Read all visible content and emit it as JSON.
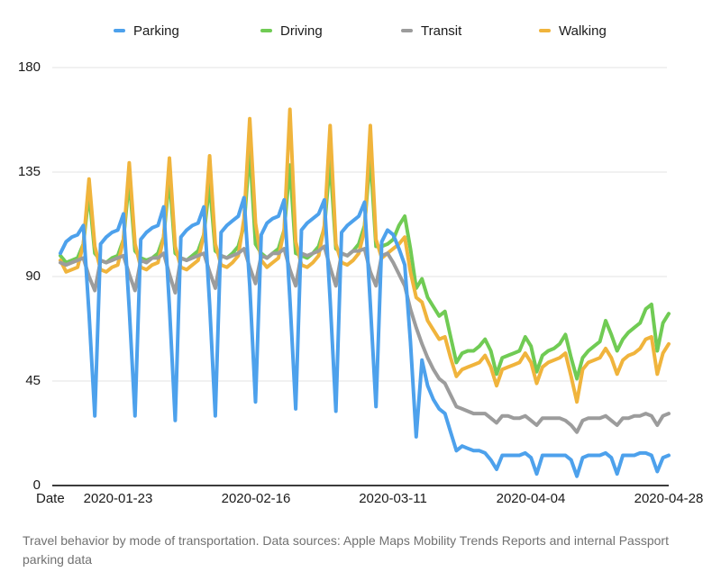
{
  "legend": {
    "items": [
      {
        "label": "Parking",
        "color": "#4DA1EC"
      },
      {
        "label": "Driving",
        "color": "#70CB54"
      },
      {
        "label": "Transit",
        "color": "#9C9C9C"
      },
      {
        "label": "Walking",
        "color": "#F0B43C"
      }
    ]
  },
  "axes": {
    "x_title": "Date",
    "y_ticks": [
      "180",
      "135",
      "90",
      "45",
      "0"
    ],
    "x_ticks": [
      "2020-01-23",
      "2020-02-16",
      "2020-03-11",
      "2020-04-04",
      "2020-04-28"
    ]
  },
  "caption": "Travel behavior by mode of transportation. Data sources: Apple Maps Mobility Trends Reports and internal Passport parking data",
  "chart_data": {
    "type": "line",
    "title": "",
    "xlabel": "Date",
    "ylabel": "",
    "ylim": [
      0,
      180
    ],
    "y_gridlines": [
      45,
      90,
      135,
      180
    ],
    "grid": true,
    "legend_position": "top",
    "x_start_date": "2020-01-13",
    "x_end_date": "2020-04-28",
    "frequency": "daily",
    "x_tick_dates": [
      "2020-01-23",
      "2020-02-16",
      "2020-03-11",
      "2020-04-04",
      "2020-04-28"
    ],
    "draw_order": [
      1,
      3,
      2,
      0
    ],
    "series": [
      {
        "name": "Parking",
        "color": "#4DA1EC",
        "values": [
          100,
          105,
          107,
          108,
          112,
          74,
          30,
          104,
          107,
          109,
          110,
          117,
          76,
          30,
          106,
          109,
          111,
          112,
          120,
          77,
          28,
          107,
          110,
          112,
          113,
          120,
          78,
          30,
          109,
          112,
          114,
          116,
          124,
          86,
          36,
          108,
          113,
          115,
          116,
          123,
          80,
          33,
          110,
          113,
          115,
          117,
          123,
          80,
          32,
          109,
          112,
          114,
          116,
          122,
          78,
          34,
          105,
          110,
          108,
          102,
          95,
          62,
          21,
          54,
          43,
          37,
          33,
          31,
          23,
          15,
          17,
          16,
          15,
          15,
          14,
          11,
          7,
          13,
          13,
          13,
          13,
          14,
          12,
          5,
          13,
          13,
          13,
          13,
          13,
          11,
          4,
          12,
          13,
          13,
          13,
          14,
          12,
          5,
          13,
          13,
          13,
          14,
          14,
          13,
          6,
          12,
          13
        ]
      },
      {
        "name": "Driving",
        "color": "#70CB54",
        "values": [
          99,
          96,
          97,
          98,
          104,
          126,
          100,
          97,
          96,
          98,
          99,
          106,
          132,
          101,
          98,
          97,
          98,
          100,
          107,
          133,
          100,
          98,
          97,
          99,
          101,
          108,
          130,
          101,
          99,
          98,
          100,
          103,
          112,
          145,
          104,
          100,
          98,
          100,
          102,
          110,
          138,
          100,
          99,
          98,
          100,
          103,
          111,
          140,
          102,
          100,
          99,
          101,
          104,
          112,
          142,
          103,
          103,
          104,
          106,
          112,
          116,
          102,
          85,
          89,
          81,
          77,
          73,
          75,
          64,
          53,
          57,
          58,
          58,
          60,
          63,
          58,
          48,
          55,
          56,
          57,
          58,
          64,
          60,
          49,
          56,
          58,
          59,
          61,
          65,
          55,
          46,
          55,
          58,
          60,
          62,
          71,
          65,
          58,
          63,
          66,
          68,
          70,
          76,
          78,
          58,
          70,
          74
        ]
      },
      {
        "name": "Transit",
        "color": "#9C9C9C",
        "values": [
          96,
          95,
          96,
          97,
          98,
          90,
          84,
          97,
          96,
          97,
          98,
          99,
          91,
          84,
          97,
          96,
          98,
          98,
          100,
          91,
          83,
          98,
          97,
          98,
          99,
          100,
          92,
          85,
          99,
          98,
          99,
          100,
          102,
          94,
          87,
          99,
          98,
          100,
          100,
          102,
          93,
          86,
          100,
          99,
          100,
          101,
          103,
          94,
          86,
          100,
          99,
          101,
          101,
          102,
          92,
          86,
          99,
          100,
          96,
          91,
          86,
          76,
          68,
          61,
          55,
          50,
          46,
          44,
          39,
          34,
          33,
          32,
          31,
          31,
          31,
          29,
          27,
          30,
          30,
          29,
          29,
          30,
          28,
          26,
          29,
          29,
          29,
          29,
          28,
          26,
          23,
          28,
          29,
          29,
          29,
          30,
          28,
          26,
          29,
          29,
          30,
          30,
          31,
          30,
          26,
          30,
          31
        ]
      },
      {
        "name": "Walking",
        "color": "#F0B43C",
        "values": [
          97,
          92,
          93,
          94,
          104,
          132,
          103,
          93,
          92,
          94,
          95,
          106,
          139,
          104,
          94,
          93,
          95,
          96,
          107,
          141,
          103,
          94,
          93,
          95,
          97,
          108,
          142,
          104,
          95,
          94,
          96,
          99,
          115,
          158,
          113,
          97,
          94,
          96,
          98,
          110,
          162,
          105,
          95,
          94,
          96,
          99,
          112,
          155,
          104,
          96,
          95,
          97,
          100,
          110,
          155,
          106,
          98,
          100,
          102,
          104,
          107,
          92,
          81,
          79,
          71,
          67,
          63,
          64,
          55,
          47,
          50,
          51,
          52,
          53,
          56,
          51,
          43,
          50,
          51,
          52,
          53,
          57,
          53,
          44,
          51,
          53,
          54,
          55,
          57,
          47,
          36,
          50,
          53,
          54,
          55,
          59,
          55,
          48,
          54,
          56,
          57,
          59,
          63,
          64,
          48,
          57,
          61
        ]
      }
    ]
  }
}
